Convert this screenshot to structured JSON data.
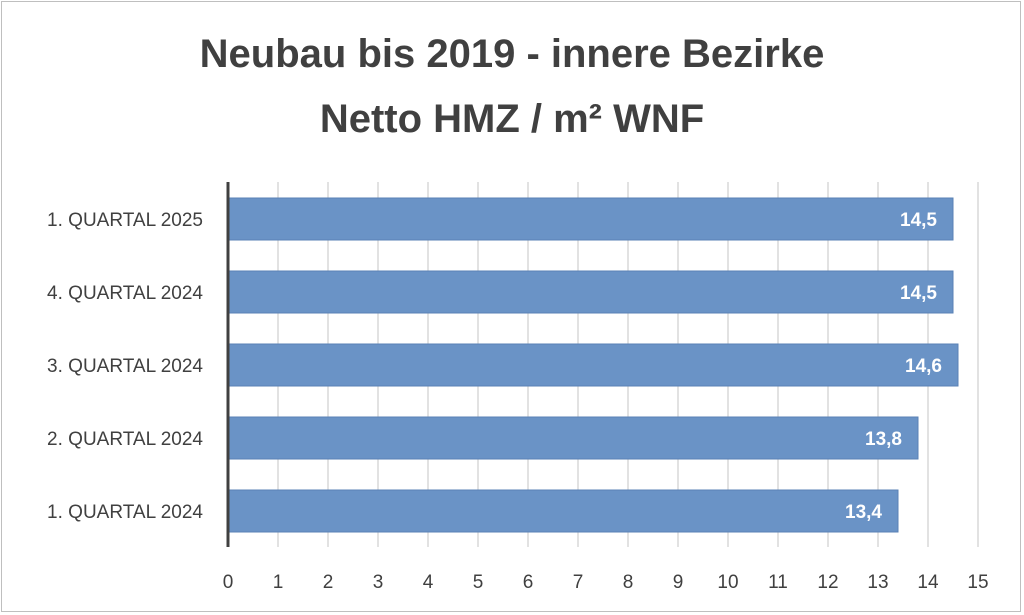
{
  "chart_data": {
    "type": "bar",
    "orientation": "horizontal",
    "title": "Neubau bis 2019 - innere Bezirke",
    "subtitle": "Netto HMZ / m² WNF",
    "categories": [
      "1. QUARTAL 2025",
      "4. QUARTAL 2024",
      "3. QUARTAL 2024",
      "2. QUARTAL 2024",
      "1. QUARTAL 2024"
    ],
    "values": [
      14.5,
      14.5,
      14.6,
      13.8,
      13.4
    ],
    "data_labels": [
      "14,5",
      "14,5",
      "14,6",
      "13,8",
      "13,4"
    ],
    "xlim": [
      0,
      15
    ],
    "x_ticks": [
      "0",
      "1",
      "2",
      "3",
      "4",
      "5",
      "6",
      "7",
      "8",
      "9",
      "10",
      "11",
      "12",
      "13",
      "14",
      "15"
    ],
    "xlabel": "",
    "ylabel": "",
    "grid": "vertical",
    "legend": "none",
    "bar_color": "#6a93c6"
  }
}
